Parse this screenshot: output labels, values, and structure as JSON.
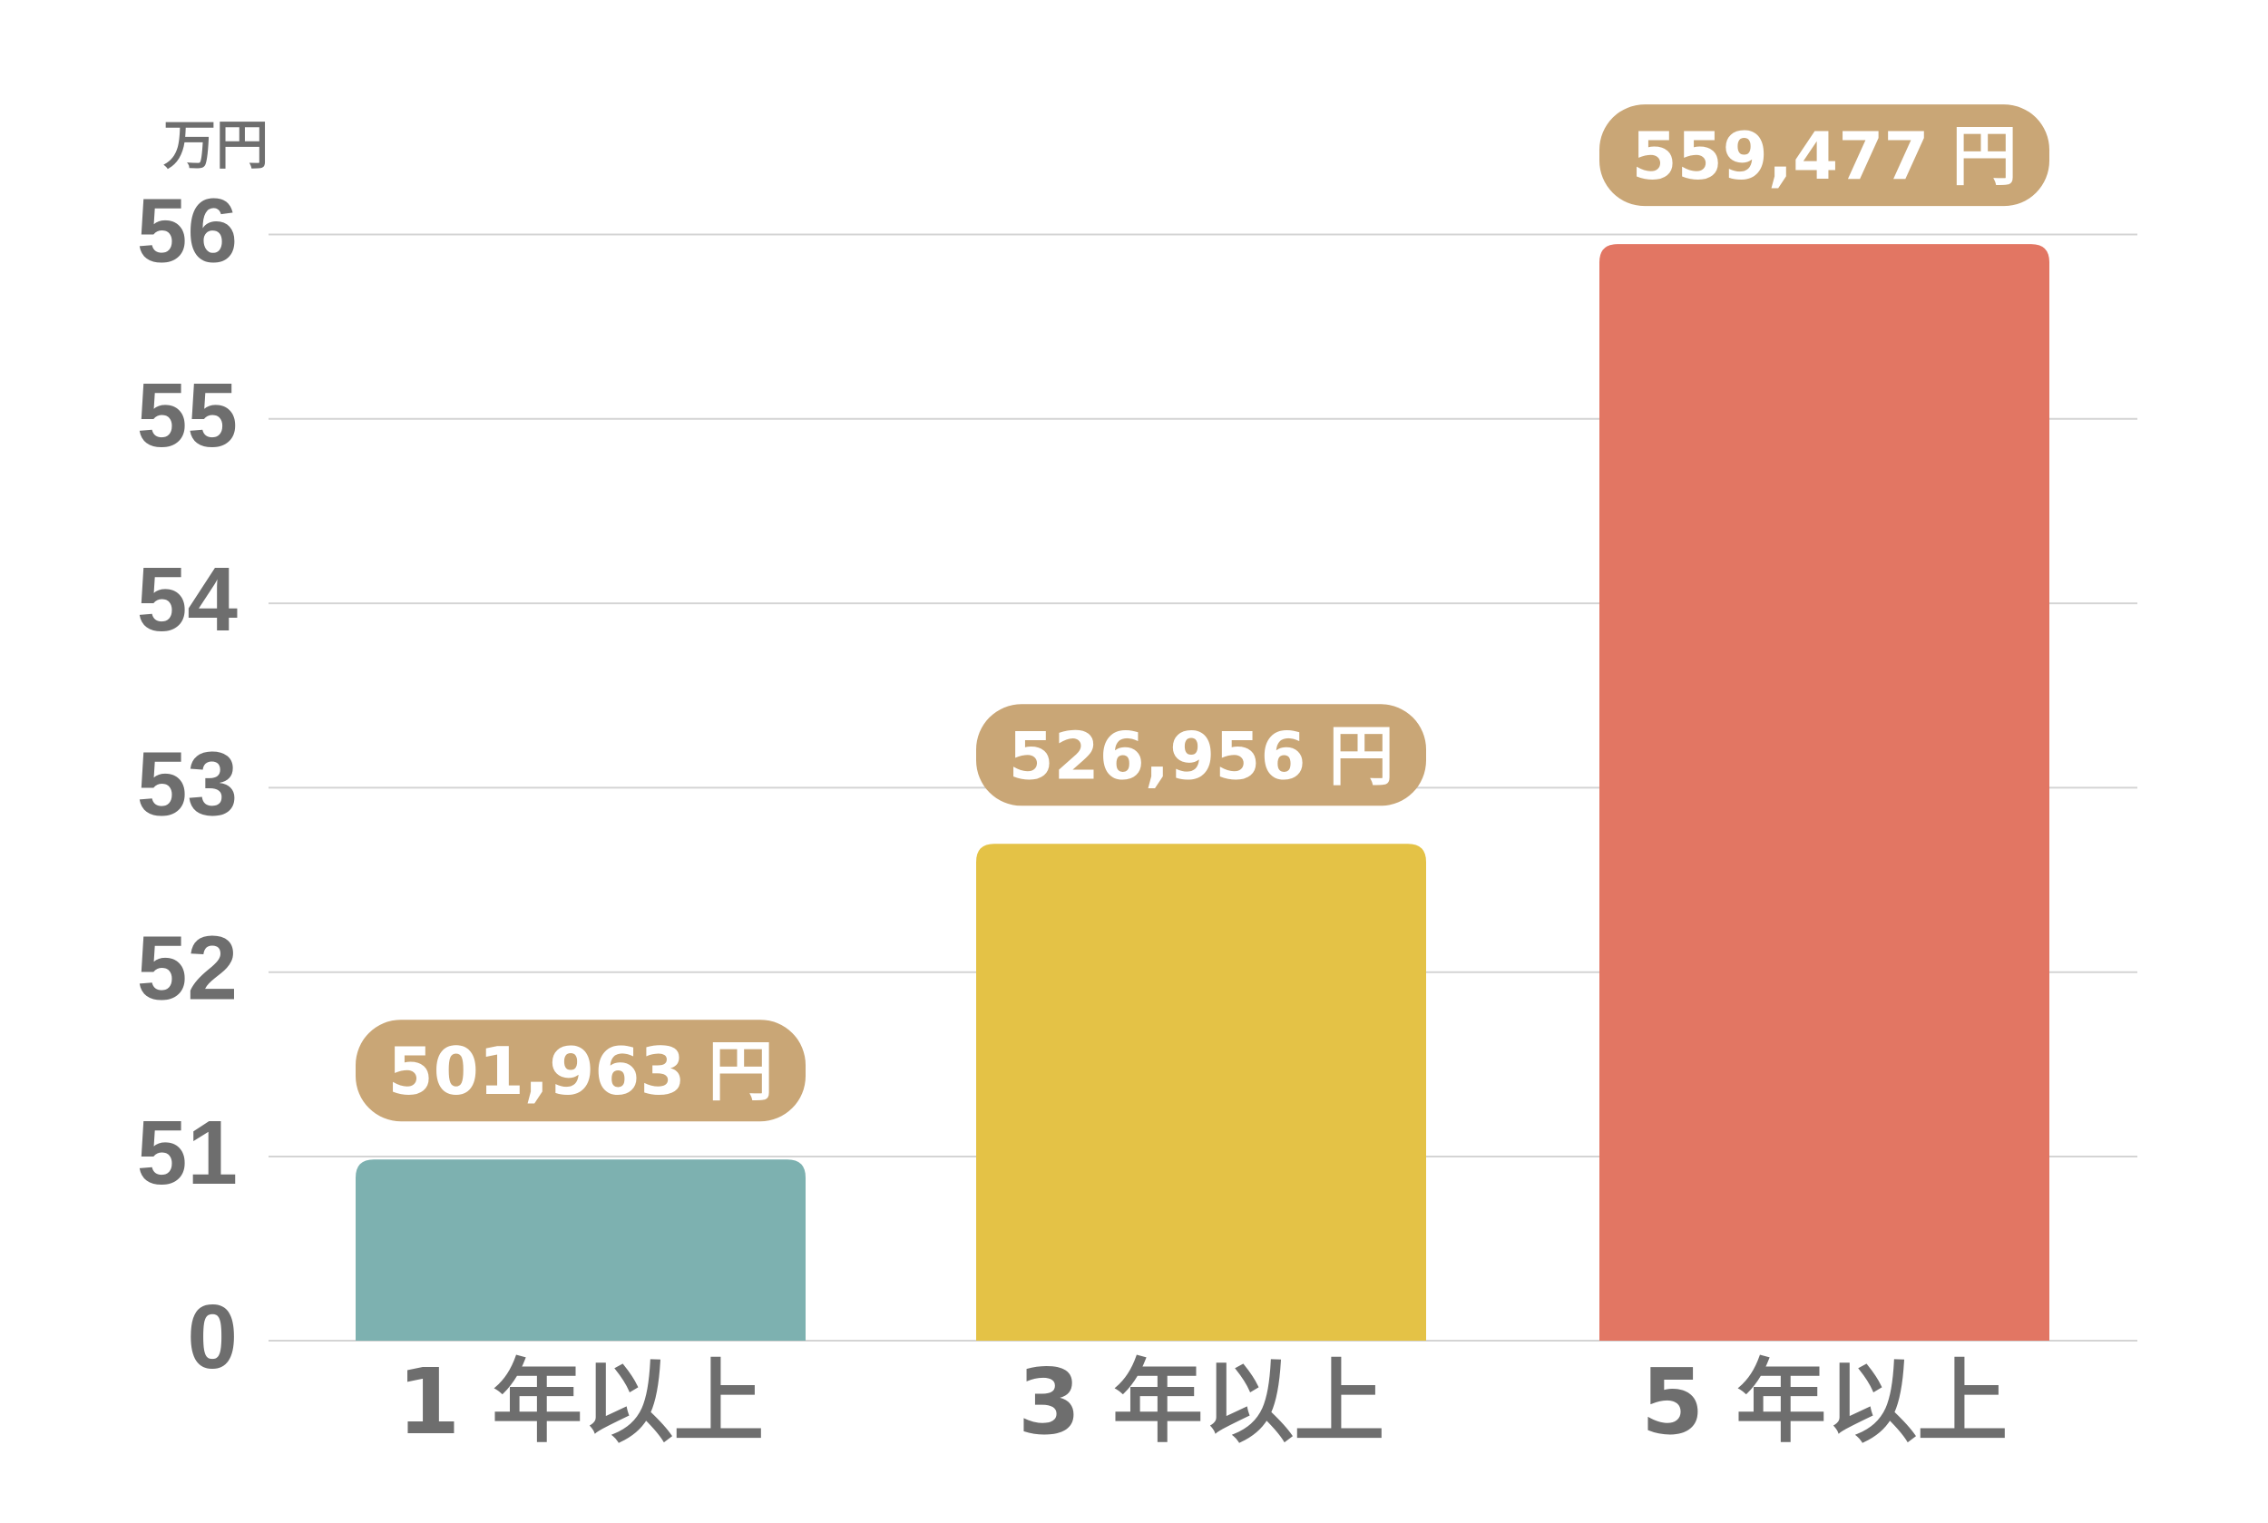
{
  "chart_data": {
    "type": "bar",
    "unit": "万円",
    "categories": [
      "1 年以上",
      "3 年以上",
      "5 年以上"
    ],
    "values": [
      501963,
      526956,
      559477
    ],
    "data_labels": [
      "501,963 円",
      "526,956 円",
      "559,477 円"
    ],
    "yticks": [
      "0",
      "51",
      "52",
      "53",
      "54",
      "55",
      "56"
    ],
    "ylim": [
      0,
      56
    ],
    "axis_break": "0 → 51",
    "grid": true,
    "bar_colors": [
      "#7db1b0",
      "#e4c246",
      "#e27663"
    ],
    "label_bg_color": "#c9a676",
    "text_color": "#6e6e6e"
  }
}
